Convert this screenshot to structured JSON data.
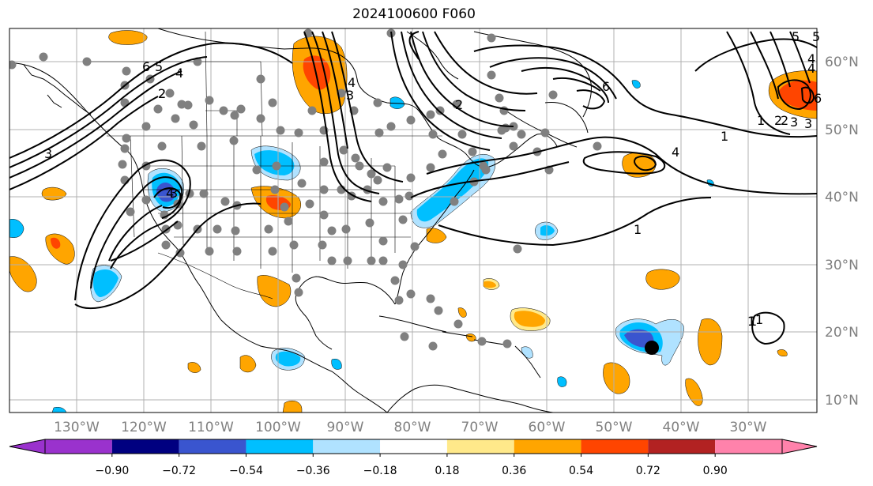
{
  "title": "2024100600 F060",
  "lon_labels": [
    "130°W",
    "120°W",
    "110°W",
    "100°W",
    "90°W",
    "80°W",
    "70°W",
    "60°W",
    "50°W",
    "40°W",
    "30°W"
  ],
  "lat_labels": [
    "60°N",
    "50°N",
    "40°N",
    "30°N",
    "20°N",
    "10°N"
  ],
  "colorbar": {
    "tick_labels": [
      "−0.90",
      "−0.72",
      "−0.54",
      "−0.36",
      "−0.18",
      "0.18",
      "0.36",
      "0.54",
      "0.72",
      "0.90"
    ],
    "colors": [
      "#9a32cd",
      "#000080",
      "#3a55cf",
      "#00bfff",
      "#b0e2ff",
      "#ffffff",
      "#ffe98a",
      "#ffa500",
      "#ff4500",
      "#b22222",
      "#ff82ab"
    ]
  },
  "contour_labels": [
    "2",
    "3",
    "4",
    "5",
    "6",
    "4",
    "3",
    "2",
    "1",
    "1",
    "1",
    "2",
    "3",
    "4",
    "6",
    "5",
    "4",
    "5",
    "6",
    "4",
    "1",
    "2",
    "3",
    "4",
    "1",
    "3",
    "2",
    "1"
  ],
  "storm_marker": "tropical-cyclone-position",
  "colors": {
    "contour": "#000000",
    "station": "#808080",
    "grid": "#b0b0b0",
    "coast": "#000000"
  }
}
